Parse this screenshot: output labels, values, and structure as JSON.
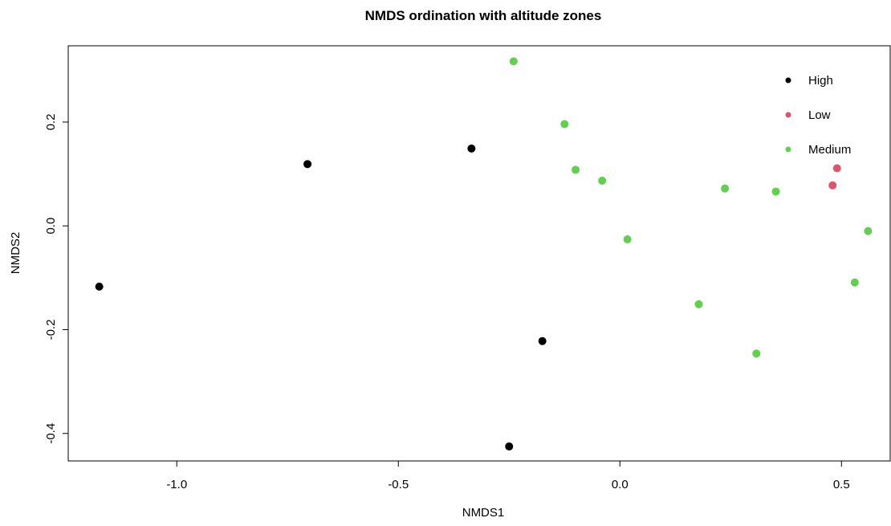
{
  "chart_data": {
    "type": "scatter",
    "title": "NMDS ordination with altitude zones",
    "xlabel": "NMDS1",
    "ylabel": "NMDS2",
    "xlim": [
      -1.245,
      0.61
    ],
    "ylim": [
      -0.453,
      0.347
    ],
    "xticks": [
      -1.0,
      -0.5,
      0.0,
      0.5
    ],
    "xtick_labels": [
      "-1.0",
      "-0.5",
      "0.0",
      "0.5"
    ],
    "yticks": [
      -0.4,
      -0.2,
      0.0,
      0.2
    ],
    "ytick_labels": [
      "-0.4",
      "-0.2",
      "0.0",
      "0.2"
    ],
    "grid": false,
    "legend_position": "top-right",
    "series": [
      {
        "name": "High",
        "color": "#000000",
        "points": [
          {
            "x": -1.175,
            "y": -0.117
          },
          {
            "x": -0.705,
            "y": 0.119
          },
          {
            "x": -0.335,
            "y": 0.149
          },
          {
            "x": -0.175,
            "y": -0.222
          },
          {
            "x": -0.25,
            "y": -0.425
          }
        ]
      },
      {
        "name": "Low",
        "color": "#df536b",
        "points": [
          {
            "x": 0.49,
            "y": 0.111
          },
          {
            "x": 0.48,
            "y": 0.078
          }
        ]
      },
      {
        "name": "Medium",
        "color": "#61d04f",
        "points": [
          {
            "x": -0.24,
            "y": 0.317
          },
          {
            "x": -0.125,
            "y": 0.196
          },
          {
            "x": -0.1,
            "y": 0.108
          },
          {
            "x": -0.04,
            "y": 0.087
          },
          {
            "x": 0.017,
            "y": -0.026
          },
          {
            "x": 0.178,
            "y": -0.151
          },
          {
            "x": 0.237,
            "y": 0.072
          },
          {
            "x": 0.308,
            "y": -0.246
          },
          {
            "x": 0.352,
            "y": 0.066
          },
          {
            "x": 0.53,
            "y": -0.109
          },
          {
            "x": 0.56,
            "y": -0.01
          }
        ]
      }
    ]
  }
}
